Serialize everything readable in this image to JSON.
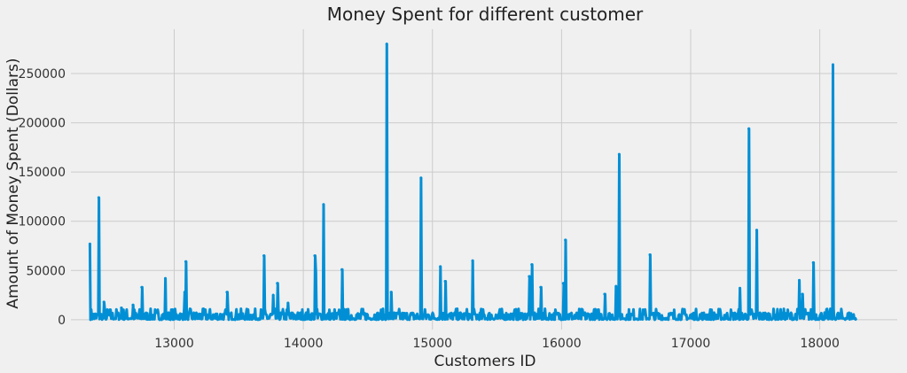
{
  "chart_data": {
    "type": "line",
    "title": "Money Spent for different customer",
    "xlabel": "Customers ID",
    "ylabel": "Amount of Money Spent (Dollars)",
    "xlim": [
      12200,
      18600
    ],
    "ylim": [
      -10000,
      295000
    ],
    "xticks": [
      13000,
      14000,
      15000,
      16000,
      17000,
      18000
    ],
    "yticks": [
      0,
      50000,
      100000,
      150000,
      200000,
      250000
    ],
    "grid": true,
    "colors": {
      "series": "#008fd5",
      "background": "#f0f0f0",
      "grid": "#cbcbcb"
    },
    "series": [
      {
        "baseline_range": [
          12347,
          18287
        ],
        "baseline_value": 1500,
        "noise_max": 8000,
        "spikes": [
          [
            12347,
            77000
          ],
          [
            12415,
            124000
          ],
          [
            12455,
            18000
          ],
          [
            12590,
            12000
          ],
          [
            12680,
            15000
          ],
          [
            12748,
            33000
          ],
          [
            12931,
            42000
          ],
          [
            13089,
            59000
          ],
          [
            13081,
            28000
          ],
          [
            13408,
            28000
          ],
          [
            13694,
            65000
          ],
          [
            13767,
            25000
          ],
          [
            13798,
            37000
          ],
          [
            13881,
            17000
          ],
          [
            14088,
            65000
          ],
          [
            14096,
            48000
          ],
          [
            14156,
            117000
          ],
          [
            14298,
            51000
          ],
          [
            14646,
            280000
          ],
          [
            14680,
            28000
          ],
          [
            14911,
            144000
          ],
          [
            15061,
            54000
          ],
          [
            15098,
            39000
          ],
          [
            15311,
            60000
          ],
          [
            15749,
            44000
          ],
          [
            15769,
            56000
          ],
          [
            15838,
            33000
          ],
          [
            16013,
            37000
          ],
          [
            16029,
            81000
          ],
          [
            16333,
            26000
          ],
          [
            16422,
            34000
          ],
          [
            16446,
            168000
          ],
          [
            16684,
            66000
          ],
          [
            17381,
            32000
          ],
          [
            17450,
            194000
          ],
          [
            17511,
            91000
          ],
          [
            17841,
            40000
          ],
          [
            17865,
            26000
          ],
          [
            17949,
            58000
          ],
          [
            18102,
            259000
          ]
        ]
      }
    ]
  }
}
